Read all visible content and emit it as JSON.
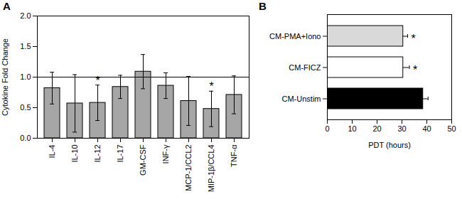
{
  "chart_data": [
    {
      "type": "bar",
      "title": "A",
      "categories": [
        "IL-4",
        "IL-10",
        "IL-12",
        "IL-17",
        "GM-CSF",
        "INF-γ",
        "MCP-1/CCL2",
        "MIP-1β/CCL4",
        "TNF-α"
      ],
      "values": [
        0.82,
        0.57,
        0.58,
        0.84,
        1.09,
        0.86,
        0.61,
        0.48,
        0.71
      ],
      "errors": [
        0.26,
        0.47,
        0.29,
        0.19,
        0.28,
        0.21,
        0.4,
        0.29,
        0.31
      ],
      "significance": [
        null,
        null,
        "*",
        null,
        null,
        null,
        null,
        "*",
        null
      ],
      "reference_line": 1,
      "color": "#a6a6a6",
      "y_label": "Cytokine Fold Change",
      "ylim": [
        0,
        2
      ],
      "yticks": [
        {
          "value": 0,
          "label": "0.0"
        },
        {
          "value": 0.5,
          "label": "0.5"
        },
        {
          "value": 1,
          "label": "1.0"
        },
        {
          "value": 1.5,
          "label": "1.5"
        },
        {
          "value": 2,
          "label": "2.0"
        }
      ],
      "grid": false
    },
    {
      "type": "bar",
      "title": "B",
      "orientation": "horizontal",
      "categories": [
        "CM-PMA+Iono",
        "CM-FICZ",
        "CM-Unstim"
      ],
      "values": [
        30.5,
        30.5,
        38.5
      ],
      "errors": [
        1.8,
        2.5,
        2.0
      ],
      "significance": [
        "*",
        "*",
        null
      ],
      "colors": [
        "#d9d9d9",
        "#ffffff",
        "#000000"
      ],
      "x_label": "PDT (hours)",
      "xlim": [
        0,
        50
      ],
      "xticks": [
        0,
        10,
        20,
        30,
        40,
        50
      ],
      "grid": false
    }
  ]
}
